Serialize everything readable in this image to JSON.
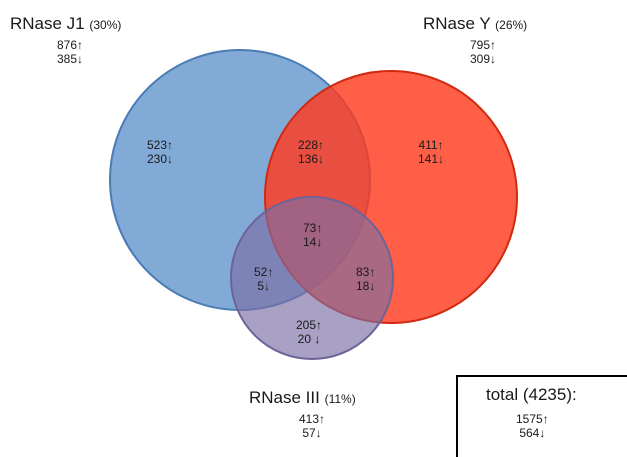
{
  "sets": {
    "j1": {
      "name": "RNase J1",
      "pct": "(30%)",
      "up": "876↑",
      "down": "385↓",
      "color": "#6c9bcf"
    },
    "y": {
      "name": "RNase Y",
      "pct": "(26%)",
      "up": "795↑",
      "down": "309↓",
      "color": "#ff4b2b"
    },
    "iii": {
      "name": "RNase III",
      "pct": "(11%)",
      "up": "413↑",
      "down": "57↓",
      "color": "#8a7aa8"
    }
  },
  "regions": {
    "j1_only": {
      "up": "523↑",
      "down": "230↓"
    },
    "j1_y": {
      "up": "228↑",
      "down": "136↓"
    },
    "y_only": {
      "up": "411↑",
      "down": "141↓"
    },
    "all_three": {
      "up": "73↑",
      "down": "14↓"
    },
    "j1_iii": {
      "up": "52↑",
      "down": "5↓"
    },
    "y_iii": {
      "up": "83↑",
      "down": "18↓"
    },
    "iii_only": {
      "up": "205↑",
      "down": "20 ↓"
    }
  },
  "total": {
    "label": "total (4235):",
    "up": "1575↑",
    "down": "564↓"
  }
}
